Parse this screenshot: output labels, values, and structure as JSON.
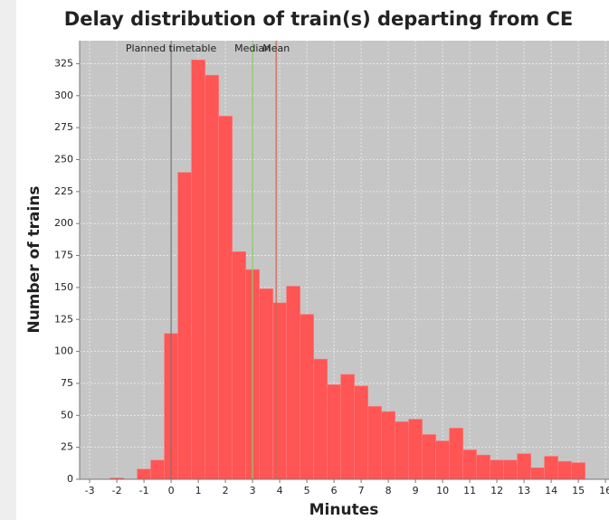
{
  "chart_data": {
    "type": "histogram",
    "title": "Delay distribution of train(s) departing from CE",
    "xlabel": "Minutes",
    "ylabel": "Number of trains",
    "bins": [
      -2.25,
      -1.75,
      -1.25,
      -0.75,
      -0.25,
      0.25,
      0.75,
      1.25,
      1.75,
      2.25,
      2.75,
      3.25,
      3.75,
      4.25,
      4.75,
      5.25,
      5.75,
      6.25,
      6.75,
      7.25,
      7.75,
      8.25,
      8.75,
      9.25,
      9.75,
      10.25,
      10.75,
      11.25,
      11.75,
      12.25,
      12.75,
      13.25,
      13.75,
      14.25,
      14.75,
      15.25
    ],
    "values": [
      1,
      0,
      8,
      15,
      114,
      240,
      328,
      316,
      284,
      178,
      164,
      149,
      138,
      151,
      129,
      94,
      74,
      82,
      73,
      57,
      53,
      45,
      47,
      35,
      30,
      40,
      23,
      19,
      15,
      15,
      20,
      9,
      18,
      14,
      13
    ],
    "color": "#ff5555",
    "markers": [
      {
        "label": "Planned timetable",
        "value": 0,
        "color": "#777777"
      },
      {
        "label": "Median",
        "value": 3,
        "color": "#88cc66"
      },
      {
        "label": "Mean",
        "value": 3.87,
        "color": "#cc6655"
      }
    ],
    "xlim": [
      -3.37,
      16.13
    ],
    "ylim": [
      0,
      343
    ],
    "xticks": [
      -3,
      -2,
      -1,
      0,
      1,
      2,
      3,
      4,
      5,
      6,
      7,
      8,
      9,
      10,
      11,
      12,
      13,
      14,
      15,
      16
    ],
    "yticks": [
      0,
      25,
      50,
      75,
      100,
      125,
      150,
      175,
      200,
      225,
      250,
      275,
      300,
      325
    ],
    "grid": true
  }
}
